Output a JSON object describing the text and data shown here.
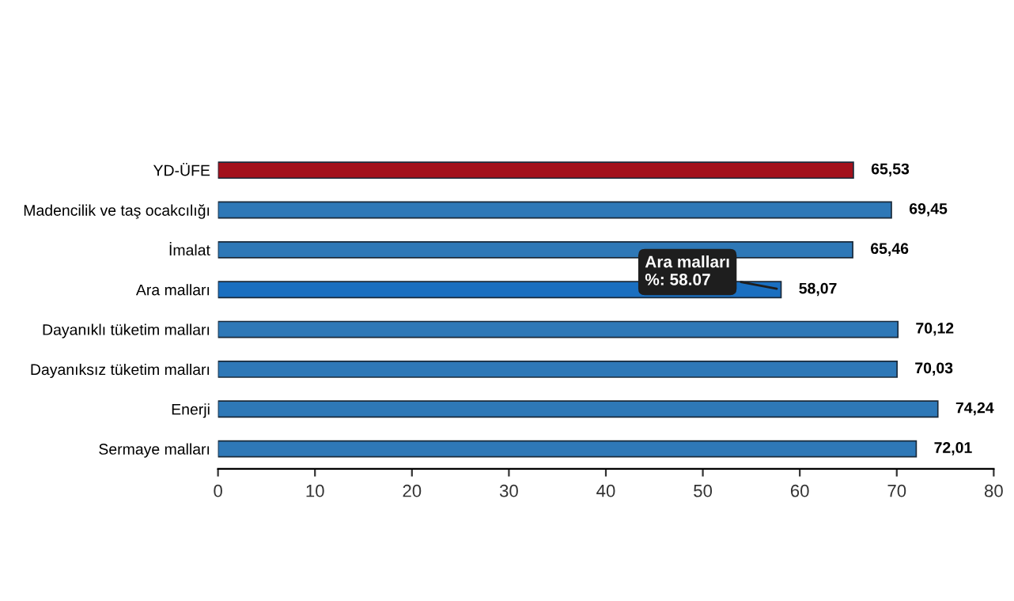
{
  "chart_data": {
    "type": "bar",
    "orientation": "horizontal",
    "categories": [
      "YD-ÜFE",
      "Madencilik ve taş ocakcılığı",
      "İmalat",
      "Ara malları",
      "Dayanıklı tüketim malları",
      "Dayanıksız tüketim malları",
      "Enerji",
      "Sermaye malları"
    ],
    "values": [
      65.53,
      69.45,
      65.46,
      58.07,
      70.12,
      70.03,
      74.24,
      72.01
    ],
    "colors": [
      "#a3111c",
      "#2e78b7",
      "#2e78b7",
      "#1a6fc0",
      "#2e78b7",
      "#2e78b7",
      "#2e78b7",
      "#2e78b7"
    ],
    "value_labels": [
      "65,53",
      "69,45",
      "65,46",
      "58,07",
      "70,12",
      "70,03",
      "74,24",
      "72,01"
    ],
    "xlim": [
      0,
      80
    ],
    "xticks": [
      0,
      10,
      20,
      30,
      40,
      50,
      60,
      70,
      80
    ],
    "grid": false,
    "annotations": [
      {
        "text": "Ara malları\n%: 58.07",
        "x": 58.07,
        "y": "Ara malları"
      }
    ]
  }
}
